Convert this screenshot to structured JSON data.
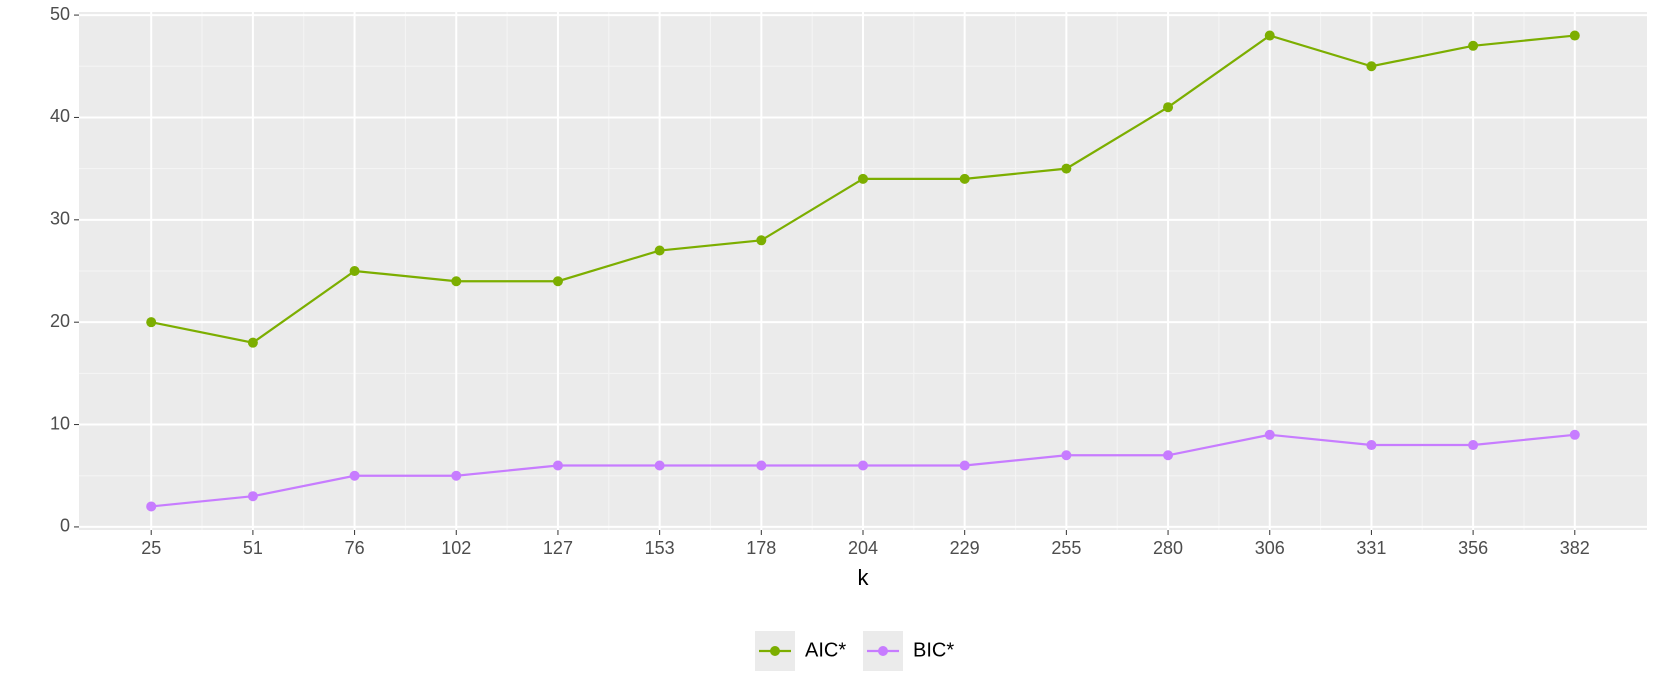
{
  "chart_data": {
    "type": "line",
    "x_label": "k",
    "categories": [
      "25",
      "51",
      "76",
      "102",
      "127",
      "153",
      "178",
      "204",
      "229",
      "255",
      "280",
      "306",
      "331",
      "356",
      "382"
    ],
    "series": [
      {
        "name": "AIC*",
        "color": "#7cae00",
        "values": [
          20,
          18,
          25,
          24,
          24,
          27,
          28,
          34,
          34,
          35,
          41,
          48,
          45,
          47,
          48
        ]
      },
      {
        "name": "BIC*",
        "color": "#c77cff",
        "values": [
          2,
          3,
          5,
          5,
          6,
          6,
          6,
          6,
          6,
          7,
          7,
          9,
          8,
          8,
          9
        ]
      }
    ],
    "ylim": [
      -0.3,
      50.3
    ],
    "yticks": [
      0,
      10,
      20,
      30,
      40,
      50
    ],
    "grid": true,
    "legend": "bottom"
  }
}
